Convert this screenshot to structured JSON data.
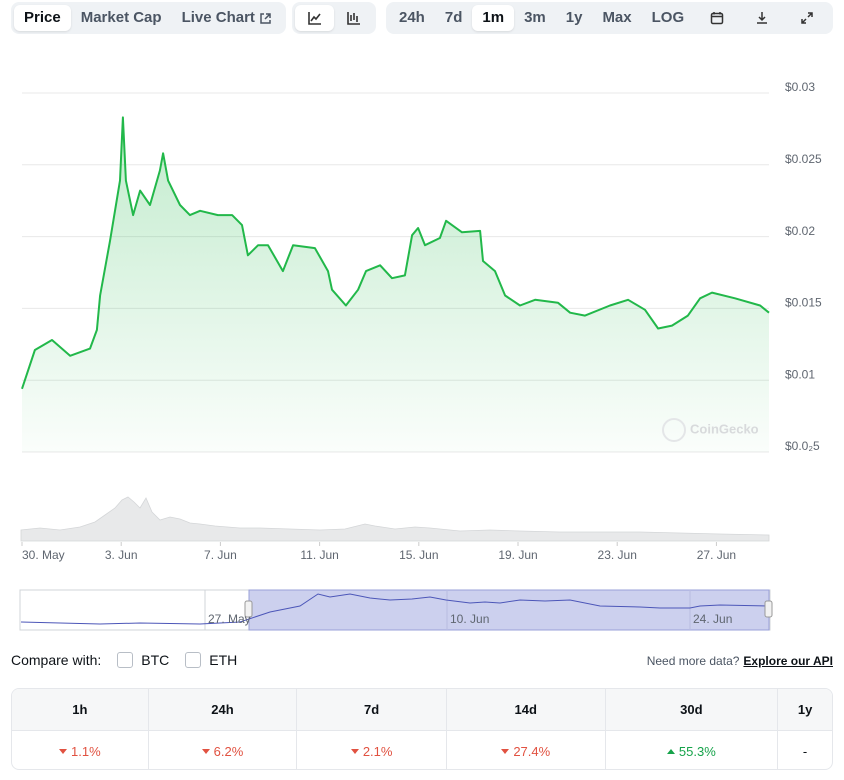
{
  "toolbar": {
    "tabs": [
      {
        "label": "Price",
        "active": true
      },
      {
        "label": "Market Cap"
      },
      {
        "label": "Live Chart"
      }
    ],
    "ranges": [
      {
        "label": "24h"
      },
      {
        "label": "7d"
      },
      {
        "label": "1m",
        "active": true
      },
      {
        "label": "3m"
      },
      {
        "label": "1y"
      },
      {
        "label": "Max"
      },
      {
        "label": "LOG"
      }
    ]
  },
  "chart_data": {
    "type": "line",
    "color": "#22b84a",
    "grid": true,
    "watermark": "CoinGecko",
    "x": [
      0,
      0.52,
      1.21,
      1.94,
      2.74,
      3.02,
      3.15,
      3.55,
      3.95,
      4.07,
      4.19,
      4.48,
      4.76,
      5.16,
      5.56,
      5.69,
      5.89,
      6.37,
      6.77,
      7.18,
      7.9,
      8.47,
      8.87,
      9.11,
      9.52,
      9.92,
      10.52,
      10.93,
      11.81,
      12.34,
      12.5,
      13.06,
      13.55,
      13.87,
      14.44,
      14.92,
      15.44,
      15.73,
      15.97,
      16.25,
      16.85,
      17.1,
      17.74,
      18.47,
      18.59,
      19.07,
      19.48,
      20.08,
      20.69,
      21.61,
      22.1,
      22.7,
      23.71,
      24.44,
      25.12,
      25.65,
      26.21,
      26.85,
      27.34,
      27.82,
      28.75,
      29.76,
      30.12
    ],
    "values": [
      0.0094,
      0.0121,
      0.0128,
      0.0117,
      0.0122,
      0.0135,
      0.0159,
      0.0197,
      0.0239,
      0.0283,
      0.0239,
      0.0215,
      0.0232,
      0.0222,
      0.0246,
      0.0258,
      0.0239,
      0.0222,
      0.0215,
      0.0218,
      0.0215,
      0.0215,
      0.0208,
      0.0187,
      0.0194,
      0.0194,
      0.0176,
      0.0194,
      0.0192,
      0.0176,
      0.0163,
      0.0152,
      0.0163,
      0.0176,
      0.018,
      0.0171,
      0.0173,
      0.0201,
      0.0206,
      0.0194,
      0.0199,
      0.0211,
      0.0203,
      0.0204,
      0.0183,
      0.0176,
      0.0159,
      0.0152,
      0.0156,
      0.0154,
      0.0147,
      0.0145,
      0.0152,
      0.0156,
      0.0149,
      0.0136,
      0.0138,
      0.0145,
      0.0157,
      0.0161,
      0.0157,
      0.0152,
      0.0147
    ],
    "xlim": [
      0,
      30.12
    ],
    "xticks": [
      {
        "value": 0,
        "label": "30. May"
      },
      {
        "value": 4,
        "label": "3. Jun"
      },
      {
        "value": 8,
        "label": "7. Jun"
      },
      {
        "value": 12,
        "label": "11. Jun"
      },
      {
        "value": 16,
        "label": "15. Jun"
      },
      {
        "value": 20,
        "label": "19. Jun"
      },
      {
        "value": 24,
        "label": "23. Jun"
      },
      {
        "value": 28,
        "label": "27. Jun"
      }
    ],
    "ylim": [
      0.005,
      0.03
    ],
    "yticks": [
      {
        "value": 0.03,
        "label": "$0.03"
      },
      {
        "value": 0.025,
        "label": "$0.025"
      },
      {
        "value": 0.02,
        "label": "$0.02"
      },
      {
        "value": 0.015,
        "label": "$0.015"
      },
      {
        "value": 0.01,
        "label": "$0.01"
      },
      {
        "value": 0.005,
        "label": "$0.0₂5"
      }
    ],
    "navigator_labels": [
      "27. May",
      "10. Jun",
      "24. Jun"
    ]
  },
  "compare": {
    "label": "Compare with:",
    "options": [
      "BTC",
      "ETH"
    ],
    "more_text": "Need more data?",
    "link": "Explore our API"
  },
  "table": {
    "columns": [
      "1h",
      "24h",
      "7d",
      "14d",
      "30d",
      "1y"
    ],
    "cells": [
      {
        "text": "1.1%",
        "direction": "down"
      },
      {
        "text": "6.2%",
        "direction": "down"
      },
      {
        "text": "2.1%",
        "direction": "down"
      },
      {
        "text": "27.4%",
        "direction": "down"
      },
      {
        "text": "55.3%",
        "direction": "up"
      },
      {
        "text": "-"
      }
    ]
  }
}
